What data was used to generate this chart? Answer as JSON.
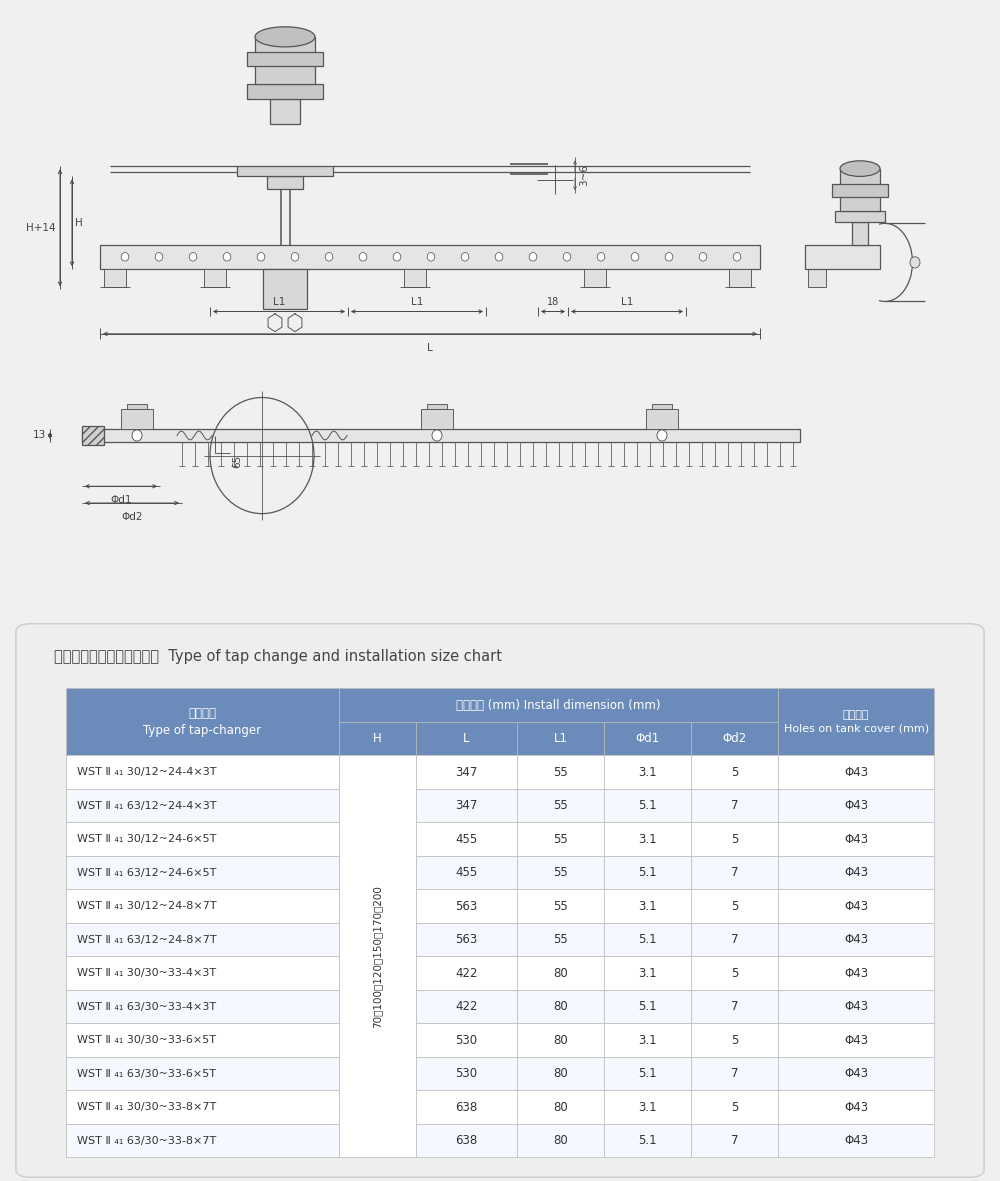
{
  "table_title_cn": "开关型号、安装尺寸对照表",
  "table_title_en": "  Type of tap change and installation size chart",
  "header_col1_cn": "开关型号",
  "header_col1_en": "Type of tap-changer",
  "header_install_cn": "安装尺寸 (mm) Install dimension (mm)",
  "header_holes_cn": "箱盖开孔",
  "header_holes_en": "Holes on tank cover (mm)",
  "sub_headers": [
    "H",
    "L",
    "L1",
    "Φd1",
    "Φd2"
  ],
  "h_value": "70、100、120、150、170、200",
  "rows": [
    [
      "WST Ⅱ ₄₁ 30/12~24-4×3T",
      "347",
      "55",
      "3.1",
      "5",
      "Φ43"
    ],
    [
      "WST Ⅱ ₄₁ 63/12~24-4×3T",
      "347",
      "55",
      "5.1",
      "7",
      "Φ43"
    ],
    [
      "WST Ⅱ ₄₁ 30/12~24-6×5T",
      "455",
      "55",
      "3.1",
      "5",
      "Φ43"
    ],
    [
      "WST Ⅱ ₄₁ 63/12~24-6×5T",
      "455",
      "55",
      "5.1",
      "7",
      "Φ43"
    ],
    [
      "WST Ⅱ ₄₁ 30/12~24-8×7T",
      "563",
      "55",
      "3.1",
      "5",
      "Φ43"
    ],
    [
      "WST Ⅱ ₄₁ 63/12~24-8×7T",
      "563",
      "55",
      "5.1",
      "7",
      "Φ43"
    ],
    [
      "WST Ⅱ ₄₁ 30/30~33-4×3T",
      "422",
      "80",
      "3.1",
      "5",
      "Φ43"
    ],
    [
      "WST Ⅱ ₄₁ 63/30~33-4×3T",
      "422",
      "80",
      "5.1",
      "7",
      "Φ43"
    ],
    [
      "WST Ⅱ ₄₁ 30/30~33-6×5T",
      "530",
      "80",
      "3.1",
      "5",
      "Φ43"
    ],
    [
      "WST Ⅱ ₄₁ 63/30~33-6×5T",
      "530",
      "80",
      "5.1",
      "7",
      "Φ43"
    ],
    [
      "WST Ⅱ ₄₁ 30/30~33-8×7T",
      "638",
      "80",
      "3.1",
      "5",
      "Φ43"
    ],
    [
      "WST Ⅱ ₄₁ 63/30~33-8×7T",
      "638",
      "80",
      "5.1",
      "7",
      "Φ43"
    ]
  ],
  "page_bg": "#f0f0f0",
  "draw_bg": "#ffffff",
  "table_panel_bg": "#eeeeee",
  "table_panel_border": "#cccccc",
  "header_bg": "#6b8cba",
  "header_text": "#ffffff",
  "row_bg1": "#ffffff",
  "row_bg2": "#f5f8ff",
  "cell_border": "#bbbbbb",
  "cell_text": "#333333",
  "title_color": "#444444",
  "draw_line_color": "#555555",
  "dim_color": "#444444"
}
